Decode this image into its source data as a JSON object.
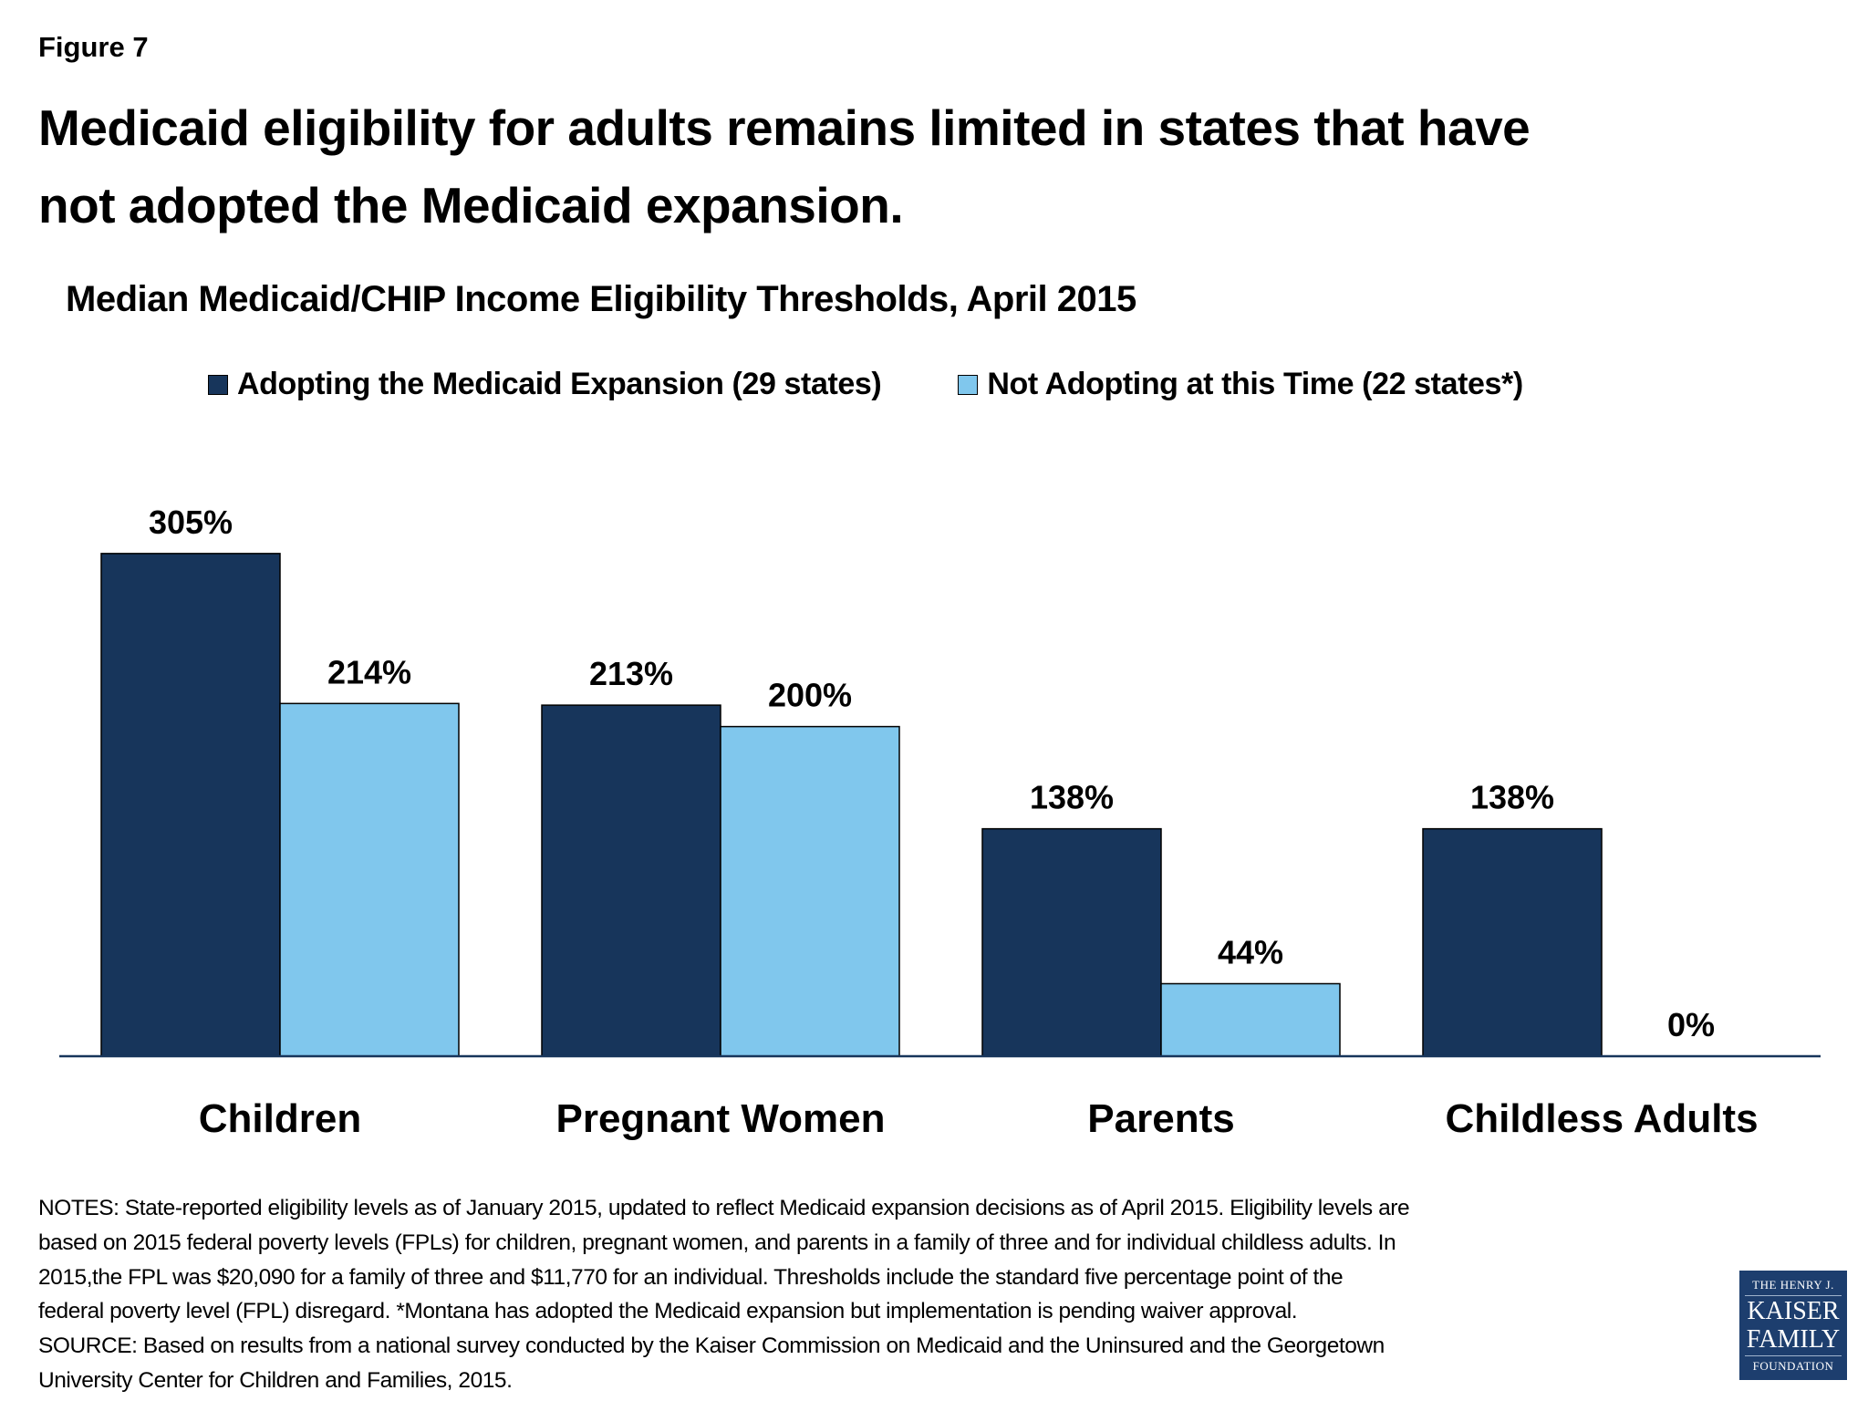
{
  "figure_label": "Figure 7",
  "title_lines": [
    "Medicaid eligibility for adults remains limited in states that have",
    "not adopted the Medicaid expansion."
  ],
  "chart_data": {
    "type": "bar",
    "title": "Median Medicaid/CHIP Income Eligibility Thresholds, April 2015",
    "categories": [
      "Children",
      "Pregnant Women",
      "Parents",
      "Childless Adults"
    ],
    "series": [
      {
        "name": "Adopting the Medicaid Expansion (29 states)",
        "values": [
          305,
          213,
          138,
          138
        ],
        "labels": [
          "305%",
          "213%",
          "138%",
          "138%"
        ],
        "color": "#17355b"
      },
      {
        "name": "Not Adopting at this Time (22 states*)",
        "values": [
          214,
          200,
          44,
          0
        ],
        "labels": [
          "214%",
          "200%",
          "44%",
          "0%"
        ],
        "color": "#80c7ed"
      }
    ],
    "xlabel": "",
    "ylabel": "",
    "ylim": [
      0,
      340
    ],
    "grid": false,
    "legend": "top"
  },
  "notes_lines": [
    "NOTES: State-reported eligibility levels as of January 2015, updated to reflect Medicaid expansion decisions as of April 2015. Eligibility levels are",
    "based on 2015 federal poverty levels (FPLs) for children, pregnant women, and parents in a family of three and for individual childless adults. In",
    "2015,the FPL was $20,090 for a family of three and $11,770 for an individual. Thresholds include the standard five percentage point of the",
    "federal poverty level (FPL) disregard. *Montana has adopted the Medicaid expansion but implementation is pending waiver approval.",
    "SOURCE: Based on  results from a national survey conducted by the Kaiser Commission on Medicaid and the Uninsured and the Georgetown",
    "University Center for Children and Families, 2015."
  ],
  "logo": {
    "line1": "THE HENRY J.",
    "line2": "KAISER",
    "line3": "FAMILY",
    "line4": "FOUNDATION"
  }
}
